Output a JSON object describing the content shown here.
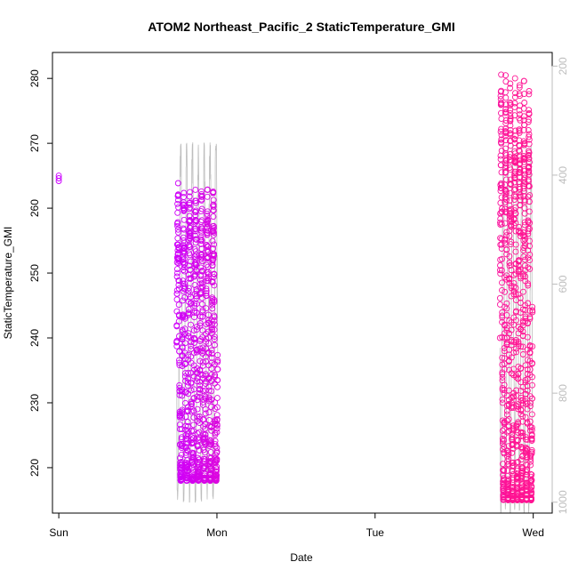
{
  "chart_data": {
    "type": "scatter",
    "title": "ATOM2 Northeast_Pacific_2 StaticTemperature_GMI",
    "xlabel": "Date",
    "ylabel": "StaticTemperature_GMI",
    "x_unit": "days since Sunday 00:00",
    "xlim": [
      -0.04,
      3.12
    ],
    "ylim": [
      213,
      284
    ],
    "y2lim": [
      1020,
      175
    ],
    "x_ticks": [
      {
        "value": 0,
        "label": "Sun"
      },
      {
        "value": 1,
        "label": "Mon"
      },
      {
        "value": 2,
        "label": "Tue"
      },
      {
        "value": 3,
        "label": "Wed"
      }
    ],
    "y_ticks": [
      220,
      230,
      240,
      250,
      260,
      270,
      280
    ],
    "y2_ticks": [
      200,
      400,
      600,
      800,
      1000
    ],
    "grid": false,
    "legend": "none",
    "marker": "open-circle",
    "colors": {
      "early": "#cc00ff",
      "late": "#ff1493",
      "pressure_line": "#bdbdbd"
    },
    "series": [
      {
        "flight_segments": [
          {
            "x_start": 0.0,
            "x_end": 0.0,
            "points": 3,
            "y_min": 264.2,
            "y_max": 265.0,
            "color_phase": 0.0
          },
          {
            "x_start": 0.745,
            "x_end": 1.005,
            "points": 900,
            "y_min": 218.0,
            "y_max": 264.4,
            "color_phase": 0.05
          },
          {
            "x_start": 2.79,
            "x_end": 2.995,
            "points": 900,
            "y_min": 215.0,
            "y_max": 281.2,
            "color_phase": 0.9
          }
        ]
      }
    ],
    "secondary_line": {
      "axis": "right",
      "description_units": "pressure",
      "segments": [
        {
          "x_start": 0.745,
          "x_end": 1.005,
          "y2_min": 175,
          "y2_max": 1000
        },
        {
          "x_start": 2.79,
          "x_end": 2.995,
          "y2_min": 175,
          "y2_max": 1020
        }
      ]
    }
  }
}
